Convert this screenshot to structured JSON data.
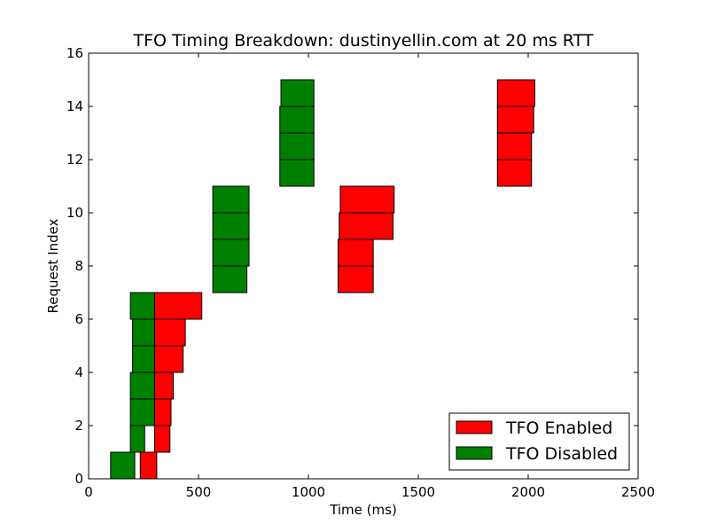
{
  "chart_data": {
    "type": "bar",
    "orientation": "horizontal-span",
    "title": "TFO Timing Breakdown: dustinyellin.com at 20 ms RTT",
    "xlabel": "Time (ms)",
    "ylabel": "Request Index",
    "xlim": [
      0,
      2500
    ],
    "ylim": [
      0,
      16
    ],
    "xticks": [
      "0",
      "500",
      "1000",
      "1500",
      "2000",
      "2500"
    ],
    "yticks": [
      "0",
      "2",
      "4",
      "6",
      "8",
      "10",
      "12",
      "14",
      "16"
    ],
    "grid": false,
    "legend_position": "bottom-right",
    "series": [
      {
        "name": "TFO Enabled",
        "color": "#ff0000",
        "spans": [
          {
            "index": 0,
            "start": 235,
            "end": 310
          },
          {
            "index": 1,
            "start": 300,
            "end": 370
          },
          {
            "index": 2,
            "start": 300,
            "end": 375
          },
          {
            "index": 3,
            "start": 300,
            "end": 385
          },
          {
            "index": 4,
            "start": 300,
            "end": 430
          },
          {
            "index": 5,
            "start": 300,
            "end": 440
          },
          {
            "index": 6,
            "start": 295,
            "end": 515
          },
          {
            "index": 7,
            "start": 1135,
            "end": 1295
          },
          {
            "index": 8,
            "start": 1135,
            "end": 1295
          },
          {
            "index": 9,
            "start": 1140,
            "end": 1385
          },
          {
            "index": 10,
            "start": 1145,
            "end": 1390
          },
          {
            "index": 11,
            "start": 1860,
            "end": 2015
          },
          {
            "index": 12,
            "start": 1860,
            "end": 2015
          },
          {
            "index": 13,
            "start": 1860,
            "end": 2025
          },
          {
            "index": 14,
            "start": 1860,
            "end": 2030
          }
        ]
      },
      {
        "name": "TFO Disabled",
        "color": "#008000",
        "spans": [
          {
            "index": 0,
            "start": 100,
            "end": 210
          },
          {
            "index": 1,
            "start": 190,
            "end": 255
          },
          {
            "index": 2,
            "start": 190,
            "end": 300
          },
          {
            "index": 3,
            "start": 190,
            "end": 300
          },
          {
            "index": 4,
            "start": 200,
            "end": 300
          },
          {
            "index": 5,
            "start": 200,
            "end": 300
          },
          {
            "index": 6,
            "start": 190,
            "end": 300
          },
          {
            "index": 7,
            "start": 565,
            "end": 720
          },
          {
            "index": 8,
            "start": 565,
            "end": 730
          },
          {
            "index": 9,
            "start": 565,
            "end": 730
          },
          {
            "index": 10,
            "start": 565,
            "end": 730
          },
          {
            "index": 11,
            "start": 870,
            "end": 1025
          },
          {
            "index": 12,
            "start": 870,
            "end": 1025
          },
          {
            "index": 13,
            "start": 870,
            "end": 1025
          },
          {
            "index": 14,
            "start": 875,
            "end": 1025
          }
        ]
      }
    ]
  }
}
